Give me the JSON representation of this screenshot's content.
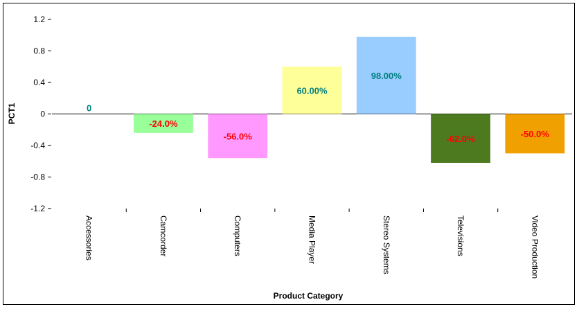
{
  "chart_data": {
    "type": "bar",
    "title": "",
    "xlabel": "Product Category",
    "ylabel": "PCT1",
    "ylim": [
      -1.2,
      1.2
    ],
    "yticks": [
      -1.2,
      -0.8,
      -0.4,
      0,
      0.4,
      0.8,
      1.2
    ],
    "ytick_labels": [
      "-1.2",
      "-0.8",
      "-0.4",
      "0",
      "0.4",
      "0.8",
      "1.2"
    ],
    "grid": false,
    "categories": [
      "Accessories",
      "Camcorder",
      "Computers",
      "Media Player",
      "Stereo Systems",
      "Televisions",
      "Video Production"
    ],
    "values": [
      0,
      -0.24,
      -0.56,
      0.6,
      0.98,
      -0.62,
      -0.5
    ],
    "data_labels": [
      "0",
      "-24.0%",
      "-56.0%",
      "60.00%",
      "98.00%",
      "-62.0%",
      "-50.0%"
    ],
    "bar_colors": [
      "#99ff99",
      "#99ff99",
      "#ff99ff",
      "#ffff99",
      "#99ccff",
      "#4d7a1f",
      "#f0a000"
    ],
    "label_colors": {
      "positive": "#008080",
      "negative": "#ff0000"
    }
  }
}
